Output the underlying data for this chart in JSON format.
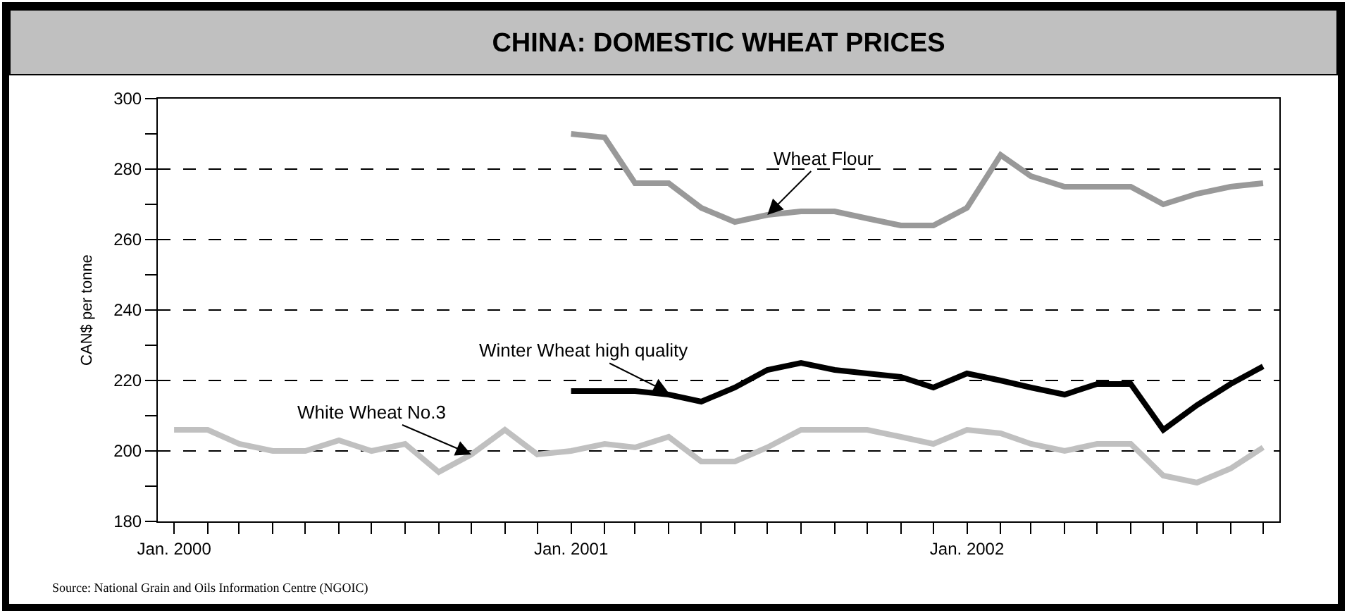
{
  "chart_data": {
    "type": "line",
    "title": "CHINA: DOMESTIC WHEAT PRICES",
    "ylabel": "CAN$ per tonne",
    "x": [
      "2000-01",
      "2000-02",
      "2000-03",
      "2000-04",
      "2000-05",
      "2000-06",
      "2000-07",
      "2000-08",
      "2000-09",
      "2000-10",
      "2000-11",
      "2000-12",
      "2001-01",
      "2001-02",
      "2001-03",
      "2001-04",
      "2001-05",
      "2001-06",
      "2001-07",
      "2001-08",
      "2001-09",
      "2001-10",
      "2001-11",
      "2001-12",
      "2002-01",
      "2002-02",
      "2002-03",
      "2002-04",
      "2002-05",
      "2002-06",
      "2002-07",
      "2002-08",
      "2002-09",
      "2002-10"
    ],
    "series": [
      {
        "color": "#999999",
        "values": [
          null,
          null,
          null,
          null,
          null,
          null,
          null,
          null,
          null,
          null,
          null,
          null,
          290,
          289,
          276,
          276,
          269,
          265,
          267,
          268,
          268,
          266,
          264,
          264,
          269,
          284,
          278,
          275,
          275,
          275,
          270,
          273,
          275,
          276
        ]
      },
      {
        "color": "#000000",
        "values": [
          null,
          null,
          null,
          null,
          null,
          null,
          null,
          null,
          null,
          null,
          null,
          null,
          217,
          217,
          217,
          216,
          214,
          218,
          223,
          225,
          223,
          222,
          221,
          218,
          222,
          220,
          218,
          216,
          219,
          219,
          206,
          213,
          219,
          224
        ]
      },
      {
        "color": "#c0c0c0",
        "values": [
          206,
          206,
          202,
          200,
          200,
          203,
          200,
          202,
          194,
          199,
          206,
          199,
          200,
          202,
          201,
          204,
          197,
          197,
          201,
          206,
          206,
          206,
          204,
          202,
          206,
          205,
          202,
          200,
          202,
          202,
          193,
          191,
          195,
          201
        ]
      }
    ],
    "xlim": [
      "1999-12-17",
      "2002-10-16"
    ],
    "xticks": [
      {
        "value": "2000-01",
        "label": "Jan. 2000"
      },
      {
        "value": "2000-02",
        "label": null
      },
      {
        "value": "2000-03",
        "label": null
      },
      {
        "value": "2000-04",
        "label": null
      },
      {
        "value": "2000-05",
        "label": null
      },
      {
        "value": "2000-06",
        "label": null
      },
      {
        "value": "2000-07",
        "label": null
      },
      {
        "value": "2000-08",
        "label": null
      },
      {
        "value": "2000-09",
        "label": null
      },
      {
        "value": "2000-10",
        "label": null
      },
      {
        "value": "2000-11",
        "label": null
      },
      {
        "value": "2000-12",
        "label": null
      },
      {
        "value": "2001-01",
        "label": "Jan. 2001"
      },
      {
        "value": "2001-02",
        "label": null
      },
      {
        "value": "2001-03",
        "label": null
      },
      {
        "value": "2001-04",
        "label": null
      },
      {
        "value": "2001-05",
        "label": null
      },
      {
        "value": "2001-06",
        "label": null
      },
      {
        "value": "2001-07",
        "label": null
      },
      {
        "value": "2001-08",
        "label": null
      },
      {
        "value": "2001-09",
        "label": null
      },
      {
        "value": "2001-10",
        "label": null
      },
      {
        "value": "2001-11",
        "label": null
      },
      {
        "value": "2001-12",
        "label": null
      },
      {
        "value": "2002-01",
        "label": "Jan. 2002"
      },
      {
        "value": "2002-02",
        "label": null
      },
      {
        "value": "2002-03",
        "label": null
      },
      {
        "value": "2002-04",
        "label": null
      },
      {
        "value": "2002-05",
        "label": null
      },
      {
        "value": "2002-06",
        "label": null
      },
      {
        "value": "2002-07",
        "label": null
      },
      {
        "value": "2002-08",
        "label": null
      },
      {
        "value": "2002-09",
        "label": null
      },
      {
        "value": "2002-10",
        "label": null
      }
    ],
    "ylim": [
      180,
      300
    ],
    "yticks": [
      180,
      {
        "value": 190,
        "label": null
      },
      200,
      {
        "value": 210,
        "label": null
      },
      220,
      {
        "value": 230,
        "label": null
      },
      240,
      {
        "value": 250,
        "label": null
      },
      260,
      {
        "value": 270,
        "label": null
      },
      280,
      {
        "value": 290,
        "label": null
      },
      300
    ],
    "grid": "y",
    "line_style": "solid",
    "marker": "none",
    "annotations": [
      {
        "text": "Wheat Flour",
        "x": "2001-07",
        "y": 267
      },
      {
        "text": "Winter Wheat high quality",
        "x": "2001-04",
        "y": 216.5
      },
      {
        "text": "White Wheat No.3",
        "x": "2000-10",
        "y": 199
      },
      "Source: National Grain and Oils Information Centre (NGOIC)"
    ]
  }
}
